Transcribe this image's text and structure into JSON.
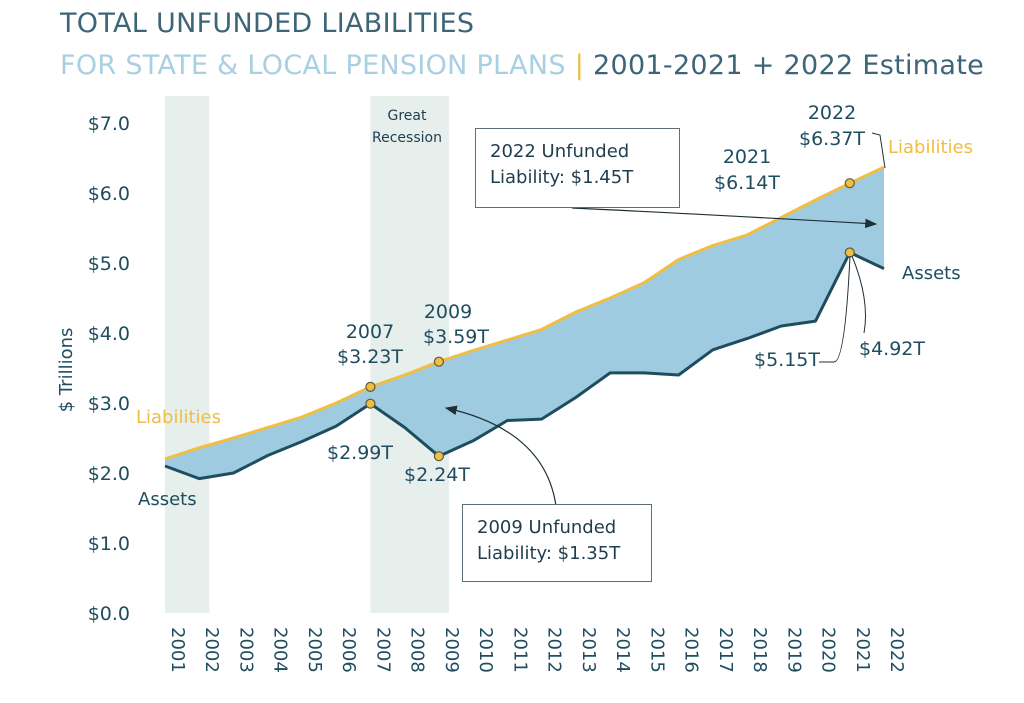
{
  "title": {
    "line1": "TOTAL UNFUNDED LIABILITIES",
    "line2_main": "FOR STATE & LOCAL PENSION PLANS",
    "line2_sep": "|",
    "line2_rest": "2001-2021 + 2022 Estimate"
  },
  "colors": {
    "liabilities": "#efbe42",
    "assets": "#1f4d60",
    "fill": "#9fcbe0",
    "band": "#e6efec",
    "text": "#1f4d60"
  },
  "annotations": {
    "recession_line1": "Great",
    "recession_line2": "Recession",
    "liab_left": "Liabilities",
    "assets_left": "Assets",
    "liab_right": "Liabilities",
    "assets_right": "Assets",
    "l2007_year": "2007",
    "l2007_val": "$3.23T",
    "l2009_year": "2009",
    "l2009_val": "$3.59T",
    "l2021_year": "2021",
    "l2021_val": "$6.14T",
    "l2022_year": "2022",
    "l2022_val": "$6.37T",
    "a2007_val": "$2.99T",
    "a2009_val": "$2.24T",
    "a2021_val": "$5.15T",
    "a2022_val": "$4.92T",
    "box2022_line1": "2022 Unfunded",
    "box2022_line2": "Liability: $1.45T",
    "box2009_line1": "2009 Unfunded",
    "box2009_line2": "Liability: $1.35T"
  },
  "chart_data": {
    "type": "area",
    "x": [
      2001,
      2002,
      2003,
      2004,
      2005,
      2006,
      2007,
      2008,
      2009,
      2010,
      2011,
      2012,
      2013,
      2014,
      2015,
      2016,
      2017,
      2018,
      2019,
      2020,
      2021,
      2022
    ],
    "x_tick_labels": [
      "2001",
      "2002",
      "2003",
      "2004",
      "2005",
      "2006",
      "2007",
      "2008",
      "2009",
      "2010",
      "2011",
      "2012",
      "2013",
      "2014",
      "2015",
      "2016",
      "2017",
      "2018",
      "2019",
      "2020",
      "2021",
      "2022"
    ],
    "series": [
      {
        "name": "Liabilities",
        "values": [
          2.2,
          2.36,
          2.5,
          2.65,
          2.8,
          3.0,
          3.23,
          3.4,
          3.59,
          3.75,
          3.9,
          4.05,
          4.3,
          4.5,
          4.72,
          5.05,
          5.25,
          5.4,
          5.65,
          5.9,
          6.14,
          6.37
        ]
      },
      {
        "name": "Assets",
        "values": [
          2.1,
          1.92,
          2.0,
          2.25,
          2.45,
          2.67,
          2.99,
          2.65,
          2.24,
          2.46,
          2.75,
          2.77,
          3.08,
          3.43,
          3.43,
          3.4,
          3.76,
          3.92,
          4.1,
          4.17,
          5.15,
          4.92
        ]
      }
    ],
    "ylabel": "$ Trillions",
    "ylim": [
      0,
      7
    ],
    "y_ticks": [
      "$0.0",
      "$1.0",
      "$2.0",
      "$3.0",
      "$4.0",
      "$5.0",
      "$6.0",
      "$7.0"
    ],
    "recession_shading": [
      [
        2001,
        2002
      ],
      [
        2007,
        2009
      ]
    ],
    "highlighted_points": [
      {
        "series": "Liabilities",
        "x": 2007,
        "y": 3.23
      },
      {
        "series": "Liabilities",
        "x": 2009,
        "y": 3.59
      },
      {
        "series": "Liabilities",
        "x": 2021,
        "y": 6.14
      },
      {
        "series": "Assets",
        "x": 2007,
        "y": 2.99
      },
      {
        "series": "Assets",
        "x": 2009,
        "y": 2.24
      },
      {
        "series": "Assets",
        "x": 2021,
        "y": 5.15
      }
    ]
  }
}
